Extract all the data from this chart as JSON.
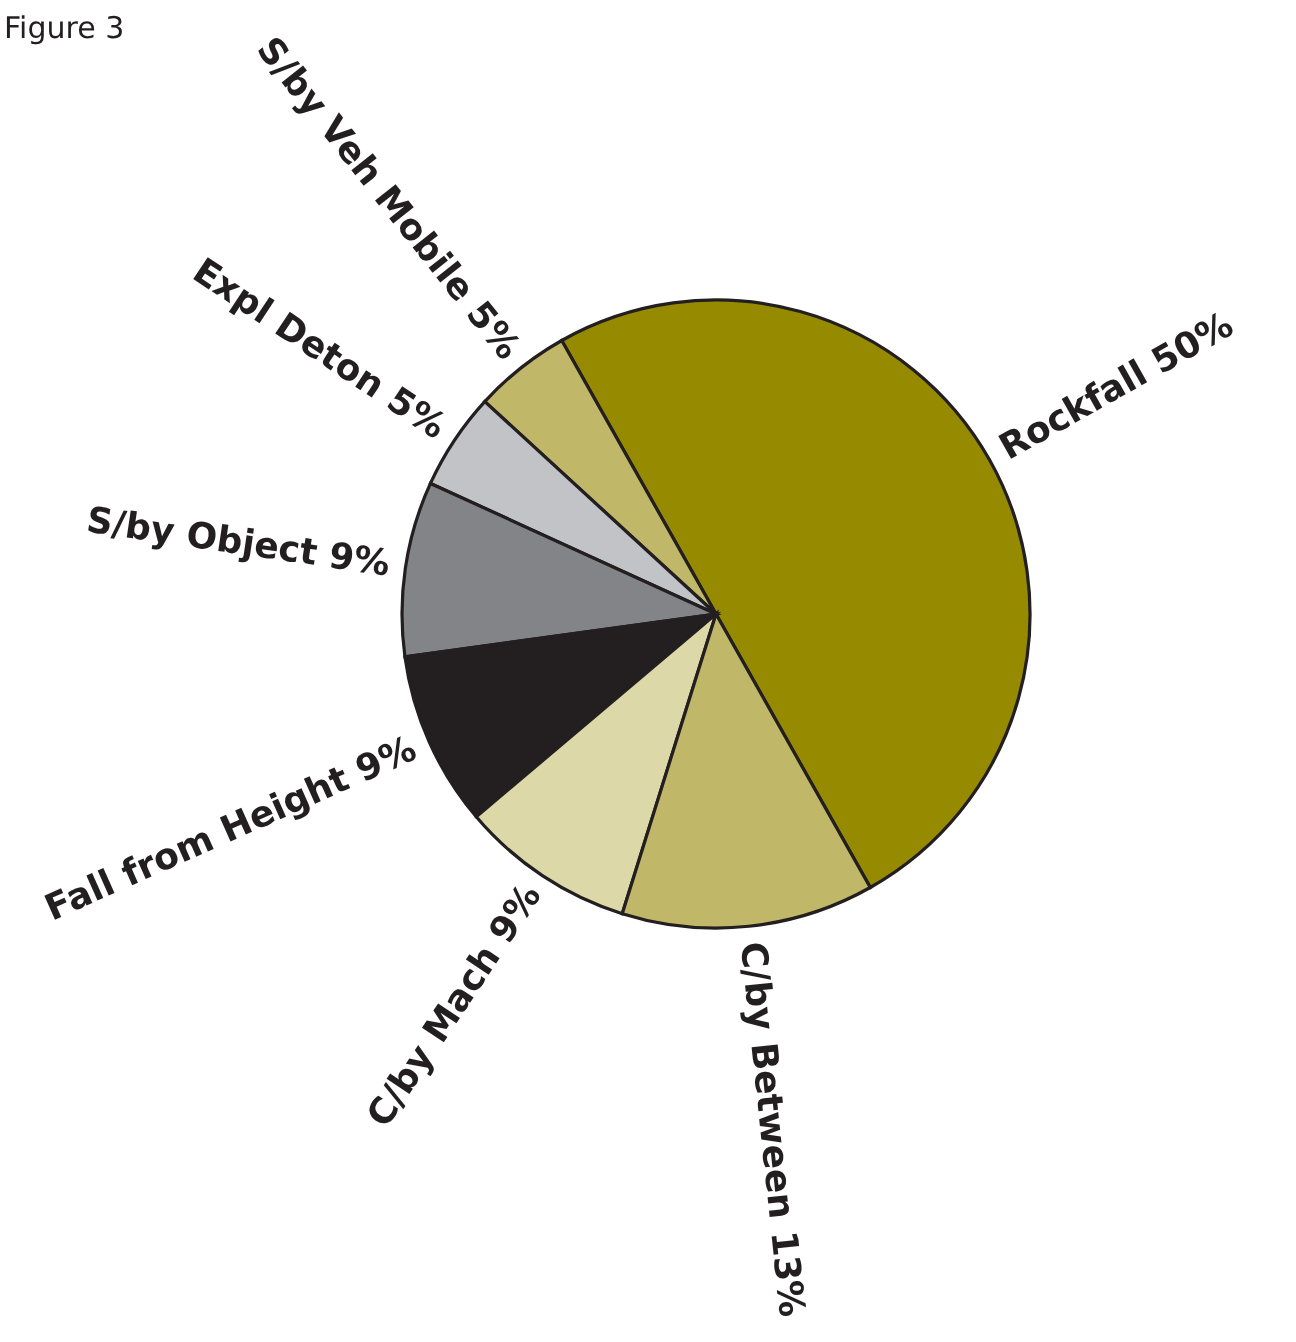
{
  "chart_data": {
    "type": "pie",
    "title": "Figure 3",
    "categories": [
      "Rockfall",
      "S/by Veh Mobile",
      "Expl Deton",
      "S/by Object",
      "Fall from Height",
      "C/by Mach",
      "C/by Between"
    ],
    "values": [
      50,
      5,
      5,
      9,
      9,
      9,
      13
    ],
    "value_labels": [
      "50%",
      "5%",
      "5%",
      "9%",
      "9%",
      "9%",
      "13%"
    ],
    "colors": [
      "#968b00",
      "#c0b868",
      "#c2c3c7",
      "#838487",
      "#231f20",
      "#ddd8a8",
      "#c0b868"
    ]
  }
}
